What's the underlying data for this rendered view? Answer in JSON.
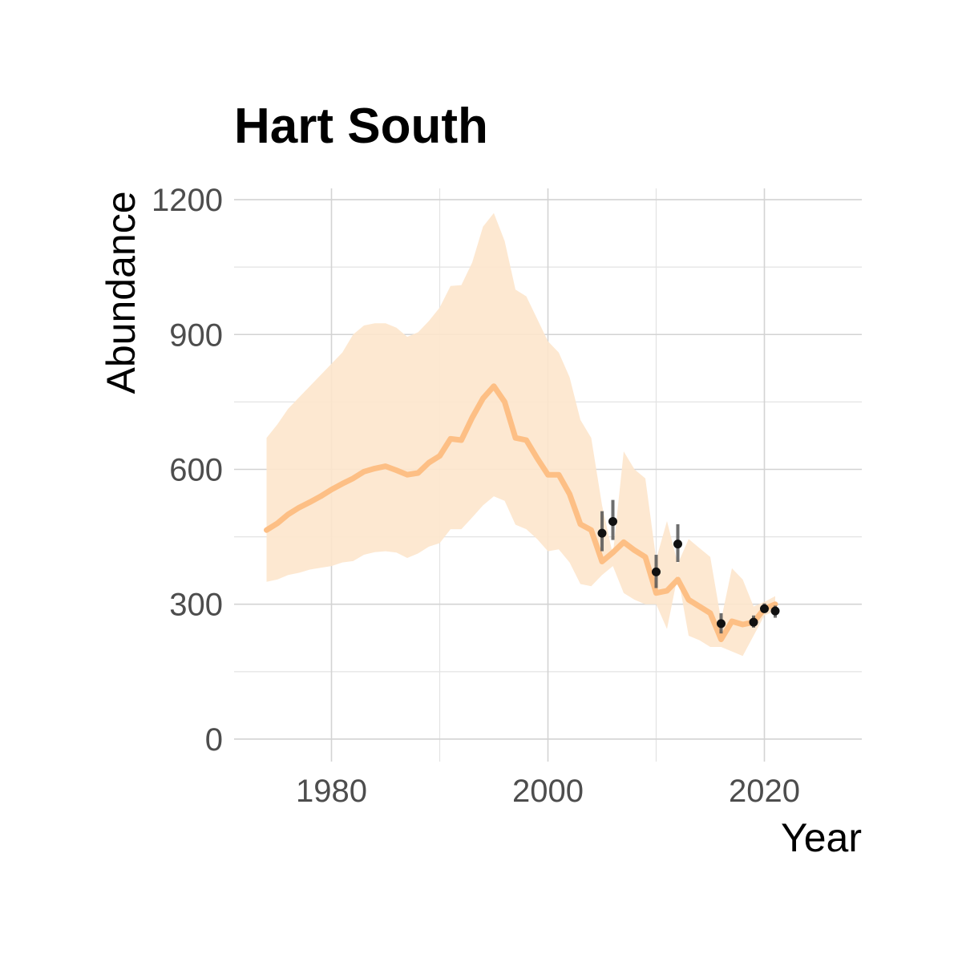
{
  "chart_data": {
    "type": "line",
    "title": "Hart South",
    "xlabel": "Year",
    "ylabel": "Abundance",
    "xlim": [
      1971,
      2029
    ],
    "ylim": [
      -50,
      1225
    ],
    "x_ticks": [
      1980,
      2000,
      2020
    ],
    "x_tick_labels": [
      "1980",
      "2000",
      "2020"
    ],
    "x_minor_ticks": [
      1990,
      2010
    ],
    "y_ticks": [
      0,
      300,
      600,
      900,
      1200
    ],
    "y_tick_labels": [
      "0",
      "300",
      "600",
      "900",
      "1200"
    ],
    "y_minor_ticks": [
      150,
      450,
      750,
      1050
    ],
    "grid": true,
    "colors": {
      "line": "#fdbf85",
      "ribbon": "#fde5cc",
      "points": "#111111",
      "errorbars": "#555555"
    },
    "series": [
      {
        "kind": "line-with-ribbon",
        "x": [
          1974,
          1975,
          1976,
          1977,
          1978,
          1979,
          1980,
          1981,
          1982,
          1983,
          1984,
          1985,
          1986,
          1987,
          1988,
          1989,
          1990,
          1991,
          1992,
          1993,
          1994,
          1995,
          1996,
          1997,
          1998,
          1999,
          2000,
          2001,
          2002,
          2003,
          2004,
          2005,
          2006,
          2007,
          2008,
          2009,
          2010,
          2011,
          2012,
          2013,
          2014,
          2015,
          2016,
          2017,
          2018,
          2019,
          2020,
          2021
        ],
        "y": [
          465,
          480,
          500,
          515,
          527,
          540,
          555,
          568,
          580,
          595,
          602,
          607,
          598,
          588,
          592,
          615,
          630,
          668,
          665,
          715,
          758,
          785,
          750,
          670,
          665,
          625,
          588,
          588,
          545,
          478,
          465,
          395,
          415,
          438,
          420,
          405,
          325,
          330,
          355,
          310,
          295,
          280,
          222,
          262,
          255,
          260,
          290,
          300
        ],
        "lower": [
          350,
          355,
          365,
          370,
          377,
          381,
          385,
          393,
          396,
          410,
          416,
          418,
          415,
          403,
          413,
          428,
          436,
          467,
          467,
          493,
          520,
          540,
          530,
          477,
          467,
          445,
          418,
          422,
          393,
          345,
          340,
          365,
          385,
          325,
          310,
          300,
          300,
          245,
          365,
          230,
          220,
          205,
          205,
          195,
          185,
          230,
          275,
          285
        ],
        "upper": [
          670,
          700,
          735,
          760,
          785,
          810,
          835,
          860,
          900,
          920,
          925,
          925,
          915,
          895,
          905,
          930,
          960,
          1008,
          1010,
          1060,
          1140,
          1170,
          1108,
          1000,
          985,
          935,
          885,
          860,
          805,
          710,
          670,
          520,
          410,
          640,
          600,
          580,
          400,
          485,
          390,
          445,
          425,
          405,
          265,
          380,
          355,
          295,
          305,
          318
        ]
      }
    ],
    "observations": {
      "x": [
        2005,
        2006,
        2010,
        2012,
        2016,
        2019,
        2020,
        2021
      ],
      "y": [
        458,
        484,
        372,
        434,
        257,
        260,
        290,
        285
      ],
      "lower": [
        418,
        443,
        336,
        394,
        235,
        248,
        282,
        270
      ],
      "upper": [
        507,
        532,
        410,
        478,
        280,
        275,
        302,
        297
      ]
    }
  }
}
